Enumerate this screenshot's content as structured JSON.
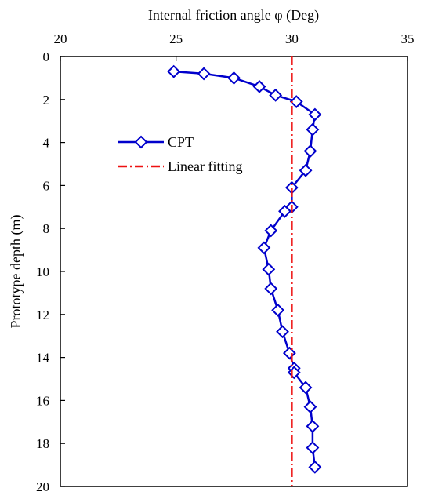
{
  "chart_data": {
    "type": "line",
    "title": "",
    "xlabel": "Internal friction angle φ (Deg)",
    "ylabel": "Prototype depth (m)",
    "x_axis_position": "top",
    "y_axis_inverted": true,
    "xlim": [
      20,
      35
    ],
    "ylim": [
      0,
      20
    ],
    "x_ticks": [
      "20",
      "25",
      "30",
      "35"
    ],
    "y_ticks": [
      "0",
      "2",
      "4",
      "6",
      "8",
      "10",
      "12",
      "14",
      "16",
      "18",
      "20"
    ],
    "grid": false,
    "legend_position": "upper-left",
    "series": [
      {
        "name": "CPT",
        "color": "#0000cc",
        "style": "solid",
        "marker": "diamond-open",
        "points": [
          {
            "x": 24.9,
            "y": 0.7
          },
          {
            "x": 26.2,
            "y": 0.8
          },
          {
            "x": 27.5,
            "y": 1.0
          },
          {
            "x": 28.6,
            "y": 1.4
          },
          {
            "x": 29.3,
            "y": 1.8
          },
          {
            "x": 30.2,
            "y": 2.1
          },
          {
            "x": 31.0,
            "y": 2.7
          },
          {
            "x": 30.9,
            "y": 3.4
          },
          {
            "x": 30.8,
            "y": 4.4
          },
          {
            "x": 30.6,
            "y": 5.3
          },
          {
            "x": 30.0,
            "y": 6.1
          },
          {
            "x": 30.0,
            "y": 7.0
          },
          {
            "x": 29.7,
            "y": 7.2
          },
          {
            "x": 29.1,
            "y": 8.1
          },
          {
            "x": 28.8,
            "y": 8.9
          },
          {
            "x": 29.0,
            "y": 9.9
          },
          {
            "x": 29.1,
            "y": 10.8
          },
          {
            "x": 29.4,
            "y": 11.8
          },
          {
            "x": 29.6,
            "y": 12.8
          },
          {
            "x": 29.9,
            "y": 13.8
          },
          {
            "x": 30.1,
            "y": 14.5
          },
          {
            "x": 30.1,
            "y": 14.7
          },
          {
            "x": 30.6,
            "y": 15.4
          },
          {
            "x": 30.8,
            "y": 16.3
          },
          {
            "x": 30.9,
            "y": 17.2
          },
          {
            "x": 30.9,
            "y": 18.2
          },
          {
            "x": 31.0,
            "y": 19.1
          }
        ]
      },
      {
        "name": "Linear fitting",
        "color": "#ee1111",
        "style": "dash-dot",
        "points": [
          {
            "x": 30.0,
            "y": 0
          },
          {
            "x": 30.0,
            "y": 20
          }
        ]
      }
    ]
  }
}
